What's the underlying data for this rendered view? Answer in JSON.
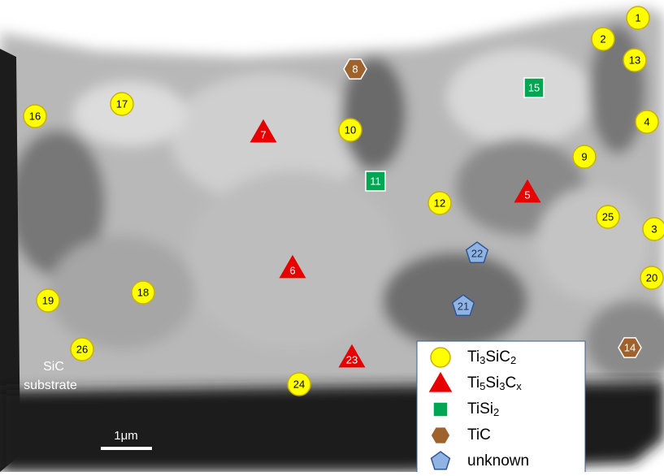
{
  "markers": [
    {
      "label": "1",
      "shape": "circle"
    },
    {
      "label": "2",
      "shape": "circle"
    },
    {
      "label": "13",
      "shape": "circle"
    },
    {
      "label": "8",
      "shape": "hexagon"
    },
    {
      "label": "15",
      "shape": "square"
    },
    {
      "label": "17",
      "shape": "circle"
    },
    {
      "label": "16",
      "shape": "circle"
    },
    {
      "label": "7",
      "shape": "triangle"
    },
    {
      "label": "10",
      "shape": "circle"
    },
    {
      "label": "4",
      "shape": "circle"
    },
    {
      "label": "9",
      "shape": "circle"
    },
    {
      "label": "11",
      "shape": "square"
    },
    {
      "label": "5",
      "shape": "triangle"
    },
    {
      "label": "12",
      "shape": "circle"
    },
    {
      "label": "25",
      "shape": "circle"
    },
    {
      "label": "3",
      "shape": "circle"
    },
    {
      "label": "22",
      "shape": "pentagon"
    },
    {
      "label": "6",
      "shape": "triangle"
    },
    {
      "label": "20",
      "shape": "circle"
    },
    {
      "label": "18",
      "shape": "circle"
    },
    {
      "label": "19",
      "shape": "circle"
    },
    {
      "label": "21",
      "shape": "pentagon"
    },
    {
      "label": "26",
      "shape": "circle"
    },
    {
      "label": "14",
      "shape": "hexagon"
    },
    {
      "label": "23",
      "shape": "triangle"
    },
    {
      "label": "24",
      "shape": "circle"
    }
  ],
  "legend": [
    {
      "shape": "circle",
      "parts": [
        {
          "text": "Ti"
        },
        {
          "text": "3",
          "sub": true
        },
        {
          "text": "SiC"
        },
        {
          "text": "2",
          "sub": true
        }
      ]
    },
    {
      "shape": "triangle",
      "parts": [
        {
          "text": "Ti"
        },
        {
          "text": "5",
          "sub": true
        },
        {
          "text": "Si"
        },
        {
          "text": "3",
          "sub": true
        },
        {
          "text": "C"
        },
        {
          "text": "x",
          "sub": true
        }
      ]
    },
    {
      "shape": "square",
      "parts": [
        {
          "text": "TiSi"
        },
        {
          "text": "2",
          "sub": true
        }
      ]
    },
    {
      "shape": "hexagon",
      "parts": [
        {
          "text": "TiC"
        }
      ]
    },
    {
      "shape": "pentagon",
      "parts": [
        {
          "text": "unknown"
        }
      ]
    }
  ],
  "substrate_label": [
    "SiC",
    "substrate"
  ],
  "scale_bar": "1μm"
}
